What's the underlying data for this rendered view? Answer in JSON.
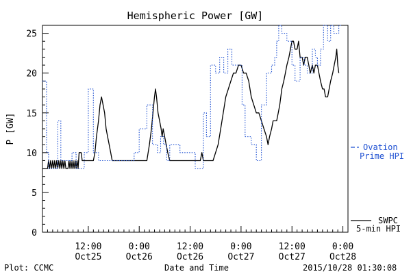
{
  "chart_data": {
    "type": "line",
    "title": "Hemispheric Power [GW]",
    "xlabel": "Date and Time",
    "ylabel": "P [GW]",
    "ylim": [
      0,
      26
    ],
    "xlim": [
      0,
      60
    ],
    "y_ticks": [
      0,
      5,
      10,
      15,
      20,
      25
    ],
    "x_ticks": [
      {
        "x": 9,
        "line1": "12:00",
        "line2": "Oct25"
      },
      {
        "x": 19,
        "line1": "0:00",
        "line2": "Oct26"
      },
      {
        "x": 29,
        "line1": "12:00",
        "line2": "Oct26"
      },
      {
        "x": 39,
        "line1": "0:00",
        "line2": "Oct27"
      },
      {
        "x": 49,
        "line1": "12:00",
        "line2": "Oct27"
      },
      {
        "x": 59,
        "line1": "0:00",
        "line2": "Oct28"
      }
    ],
    "grid": false,
    "legend_placement": "right",
    "series": [
      {
        "name": "SWPC 5-min HPI",
        "legend_line1": "SWPC",
        "legend_line2": "5-min HPI",
        "color": "#000000",
        "style": "solid",
        "step": false,
        "points": [
          [
            0,
            8
          ],
          [
            1,
            8
          ],
          [
            1.2,
            9
          ],
          [
            1.4,
            8
          ],
          [
            1.6,
            9
          ],
          [
            1.8,
            8
          ],
          [
            2,
            9
          ],
          [
            2.2,
            8
          ],
          [
            2.4,
            9
          ],
          [
            2.6,
            8
          ],
          [
            2.8,
            9
          ],
          [
            3,
            8
          ],
          [
            3.2,
            9
          ],
          [
            3.4,
            8
          ],
          [
            3.6,
            9
          ],
          [
            3.8,
            8
          ],
          [
            4,
            9
          ],
          [
            4.2,
            8
          ],
          [
            4.4,
            9
          ],
          [
            4.6,
            8
          ],
          [
            5,
            8
          ],
          [
            5.2,
            9
          ],
          [
            5.4,
            8
          ],
          [
            5.6,
            9
          ],
          [
            5.8,
            8
          ],
          [
            6,
            9
          ],
          [
            6.2,
            8
          ],
          [
            6.4,
            9
          ],
          [
            6.6,
            8
          ],
          [
            6.8,
            9
          ],
          [
            7,
            8
          ],
          [
            7.2,
            10
          ],
          [
            7.6,
            10
          ],
          [
            7.8,
            9
          ],
          [
            8,
            9
          ],
          [
            9,
            9
          ],
          [
            10,
            9
          ],
          [
            10.3,
            10
          ],
          [
            10.6,
            12
          ],
          [
            11,
            14
          ],
          [
            11.3,
            16
          ],
          [
            11.6,
            17
          ],
          [
            11.9,
            16
          ],
          [
            12.2,
            15
          ],
          [
            12.5,
            13
          ],
          [
            12.8,
            12
          ],
          [
            13.1,
            11
          ],
          [
            13.4,
            10
          ],
          [
            13.7,
            9
          ],
          [
            14,
            9
          ],
          [
            18,
            9
          ],
          [
            19.5,
            9
          ],
          [
            20.5,
            9
          ],
          [
            21,
            11
          ],
          [
            21.4,
            13
          ],
          [
            21.7,
            15
          ],
          [
            22,
            17
          ],
          [
            22.2,
            18
          ],
          [
            22.4,
            17
          ],
          [
            22.7,
            15
          ],
          [
            23,
            14
          ],
          [
            23.3,
            13
          ],
          [
            23.5,
            12
          ],
          [
            23.7,
            13
          ],
          [
            24,
            12
          ],
          [
            24.3,
            11
          ],
          [
            24.6,
            10
          ],
          [
            25,
            9
          ],
          [
            25.5,
            9
          ],
          [
            26,
            9
          ],
          [
            29,
            9
          ],
          [
            31,
            9
          ],
          [
            31.3,
            10
          ],
          [
            31.6,
            9
          ],
          [
            32,
            9
          ],
          [
            33.5,
            9
          ],
          [
            34,
            10
          ],
          [
            34.5,
            11
          ],
          [
            35,
            13
          ],
          [
            35.5,
            15
          ],
          [
            36,
            17
          ],
          [
            36.5,
            18
          ],
          [
            37,
            19
          ],
          [
            37.5,
            20
          ],
          [
            38,
            20
          ],
          [
            38.5,
            21
          ],
          [
            39,
            21
          ],
          [
            39.5,
            20
          ],
          [
            40,
            20
          ],
          [
            40.5,
            19
          ],
          [
            41,
            17
          ],
          [
            41.5,
            16
          ],
          [
            42,
            15
          ],
          [
            42.5,
            15
          ],
          [
            43,
            14
          ],
          [
            43.5,
            13
          ],
          [
            44,
            12
          ],
          [
            44.3,
            11
          ],
          [
            44.6,
            12
          ],
          [
            45,
            13
          ],
          [
            45.3,
            14
          ],
          [
            45.6,
            14
          ],
          [
            46,
            14
          ],
          [
            46.3,
            15
          ],
          [
            46.6,
            16
          ],
          [
            47,
            18
          ],
          [
            47.4,
            19
          ],
          [
            47.7,
            20
          ],
          [
            48,
            21
          ],
          [
            48.4,
            22
          ],
          [
            48.7,
            23
          ],
          [
            49,
            24
          ],
          [
            49.3,
            24
          ],
          [
            49.6,
            23
          ],
          [
            50,
            23
          ],
          [
            50.3,
            24
          ],
          [
            50.6,
            22
          ],
          [
            51,
            22
          ],
          [
            51.3,
            21
          ],
          [
            51.6,
            22
          ],
          [
            52,
            22
          ],
          [
            52.3,
            21
          ],
          [
            52.6,
            20
          ],
          [
            53,
            21
          ],
          [
            53.3,
            20
          ],
          [
            53.6,
            21
          ],
          [
            54,
            21
          ],
          [
            54.3,
            20
          ],
          [
            54.6,
            19
          ],
          [
            55,
            18
          ],
          [
            55.3,
            18
          ],
          [
            55.6,
            17
          ],
          [
            56,
            17
          ],
          [
            56.3,
            18
          ],
          [
            56.6,
            19
          ],
          [
            57,
            20
          ],
          [
            57.3,
            21
          ],
          [
            57.6,
            22
          ],
          [
            57.8,
            23
          ],
          [
            58,
            21
          ],
          [
            58.2,
            20
          ]
        ]
      },
      {
        "name": "Ovation Prime HPI",
        "legend_line1": "Ovation",
        "legend_line2": "Prime HPI",
        "color": "#1e50d2",
        "style": "dotted",
        "step": true,
        "points": [
          [
            0,
            19
          ],
          [
            0.8,
            10
          ],
          [
            1.2,
            8
          ],
          [
            3,
            14
          ],
          [
            3.6,
            9
          ],
          [
            5,
            9
          ],
          [
            5.8,
            10
          ],
          [
            6.6,
            8
          ],
          [
            8.2,
            10
          ],
          [
            9,
            18
          ],
          [
            10,
            10
          ],
          [
            11,
            9
          ],
          [
            16,
            9
          ],
          [
            18,
            10
          ],
          [
            19,
            13
          ],
          [
            20.5,
            16
          ],
          [
            21.6,
            11
          ],
          [
            22.6,
            10
          ],
          [
            23.2,
            12
          ],
          [
            23.8,
            11
          ],
          [
            24.4,
            9
          ],
          [
            25,
            11
          ],
          [
            27,
            10
          ],
          [
            29,
            10
          ],
          [
            30,
            8
          ],
          [
            31.6,
            15
          ],
          [
            32.2,
            12
          ],
          [
            33,
            21
          ],
          [
            34,
            20
          ],
          [
            34.8,
            22
          ],
          [
            35.6,
            20
          ],
          [
            36.4,
            23
          ],
          [
            37.2,
            21
          ],
          [
            38.2,
            21
          ],
          [
            39,
            21
          ],
          [
            39.2,
            16
          ],
          [
            39.8,
            12
          ],
          [
            41,
            11
          ],
          [
            42,
            9
          ],
          [
            43,
            16
          ],
          [
            44,
            20
          ],
          [
            45,
            21
          ],
          [
            45.6,
            22
          ],
          [
            46,
            24
          ],
          [
            46.4,
            26
          ],
          [
            47,
            25
          ],
          [
            48,
            24
          ],
          [
            49,
            21
          ],
          [
            49.6,
            19
          ],
          [
            50.6,
            22
          ],
          [
            51.4,
            21
          ],
          [
            52,
            20
          ],
          [
            53,
            23
          ],
          [
            53.6,
            22
          ],
          [
            54,
            21
          ],
          [
            54.6,
            23
          ],
          [
            55.2,
            26
          ],
          [
            56,
            24
          ],
          [
            56.6,
            26
          ],
          [
            57.2,
            25
          ],
          [
            58.2,
            26
          ]
        ]
      }
    ]
  },
  "footer": {
    "plot_credit": "Plot: CCMC",
    "timestamp": "2015/10/28 01:30:08"
  }
}
